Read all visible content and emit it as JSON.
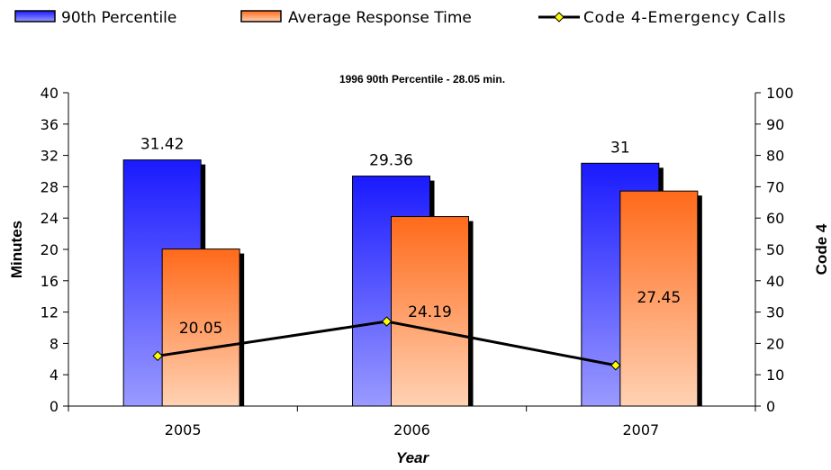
{
  "chart_data": {
    "type": "bar",
    "title": "1996 90th Percentile - 28.05 min.",
    "xlabel": "Year",
    "ylabel": "Minutes",
    "y2label": "Code 4",
    "categories": [
      "2005",
      "2006",
      "2007"
    ],
    "ylim": [
      0,
      40
    ],
    "y_ticks": [
      0,
      4,
      8,
      12,
      16,
      20,
      24,
      28,
      32,
      36,
      40
    ],
    "y2lim": [
      0,
      100
    ],
    "y2_ticks": [
      0,
      10,
      20,
      30,
      40,
      50,
      60,
      70,
      80,
      90,
      100
    ],
    "legend_position": "top",
    "grid": false,
    "series": [
      {
        "name": "90th Percentile",
        "kind": "bar",
        "axis": "left",
        "values": [
          31.42,
          29.36,
          31
        ],
        "labels": [
          "31.42",
          "29.36",
          "31"
        ],
        "color_top": "#1a1aff",
        "color_bottom": "#9a9aff"
      },
      {
        "name": "Average Response Time",
        "kind": "bar",
        "axis": "left",
        "values": [
          20.05,
          24.19,
          27.45
        ],
        "labels": [
          "20.05",
          "24.19",
          "27.45"
        ],
        "color_top": "#ff6a1a",
        "color_bottom": "#ffd2b4"
      },
      {
        "name": "Code 4-Emergency Calls",
        "kind": "line",
        "axis": "right",
        "values": [
          16,
          27,
          13
        ],
        "color": "#000000",
        "marker_color": "#ffff00"
      }
    ]
  }
}
